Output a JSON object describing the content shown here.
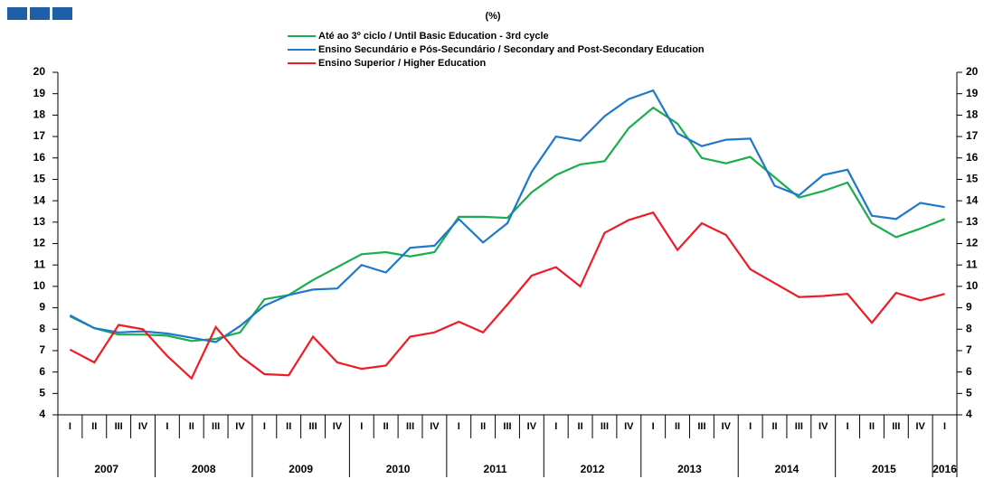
{
  "chart_data": {
    "type": "line",
    "subtitle": "(%)",
    "categories": [
      "I",
      "II",
      "III",
      "IV",
      "I",
      "II",
      "III",
      "IV",
      "I",
      "II",
      "III",
      "IV",
      "I",
      "II",
      "III",
      "IV",
      "I",
      "II",
      "III",
      "IV",
      "I",
      "II",
      "III",
      "IV",
      "I",
      "II",
      "III",
      "IV",
      "I",
      "II",
      "III",
      "IV",
      "I",
      "II",
      "III",
      "IV",
      "I"
    ],
    "x_groups": [
      "2007",
      "2008",
      "2009",
      "2010",
      "2011",
      "2012",
      "2013",
      "2014",
      "2015",
      "2016"
    ],
    "series": [
      {
        "name": "Até ao 3º ciclo / Until Basic Education - 3rd cycle",
        "color": "#1aae4f",
        "values": [
          8.6,
          8.05,
          7.75,
          7.75,
          7.7,
          7.45,
          7.55,
          7.85,
          9.4,
          9.6,
          10.3,
          10.9,
          11.5,
          11.6,
          11.4,
          11.6,
          13.25,
          13.25,
          13.2,
          14.4,
          15.2,
          15.7,
          15.85,
          17.4,
          18.35,
          17.6,
          16.0,
          15.75,
          16.05,
          15.1,
          14.15,
          14.45,
          14.85,
          12.95,
          12.3,
          12.7,
          13.15
        ]
      },
      {
        "name": "Ensino Secundário e Pós-Secundário / Secondary and Post-Secondary Education",
        "color": "#1f78c8",
        "values": [
          8.65,
          8.05,
          7.85,
          7.9,
          7.8,
          7.6,
          7.4,
          8.15,
          9.1,
          9.6,
          9.85,
          9.9,
          11.0,
          10.65,
          11.8,
          11.9,
          13.15,
          12.05,
          12.95,
          15.35,
          17.0,
          16.8,
          17.95,
          18.75,
          19.15,
          17.15,
          16.55,
          16.85,
          16.9,
          14.7,
          14.25,
          15.2,
          15.45,
          13.3,
          13.15,
          13.9,
          13.7
        ]
      },
      {
        "name": "Ensino Superior / Higher Education",
        "color": "#ee1c25",
        "values": [
          7.05,
          6.45,
          8.2,
          8.0,
          6.75,
          5.7,
          8.1,
          6.75,
          5.9,
          5.85,
          7.65,
          6.45,
          6.15,
          6.3,
          7.65,
          7.85,
          8.35,
          7.85,
          9.15,
          10.5,
          10.9,
          10.0,
          12.5,
          13.1,
          13.45,
          11.7,
          12.95,
          12.4,
          10.8,
          10.15,
          9.5,
          9.55,
          9.65,
          8.3,
          9.7,
          9.35,
          9.65
        ]
      }
    ],
    "ylim": [
      4,
      20
    ],
    "yticks": [
      4,
      5,
      6,
      7,
      8,
      9,
      10,
      11,
      12,
      13,
      14,
      15,
      16,
      17,
      18,
      19,
      20
    ],
    "y2lim": [
      4,
      20
    ],
    "y2ticks": [
      4,
      5,
      6,
      7,
      8,
      9,
      10,
      11,
      12,
      13,
      14,
      15,
      16,
      17,
      18,
      19,
      20
    ]
  }
}
